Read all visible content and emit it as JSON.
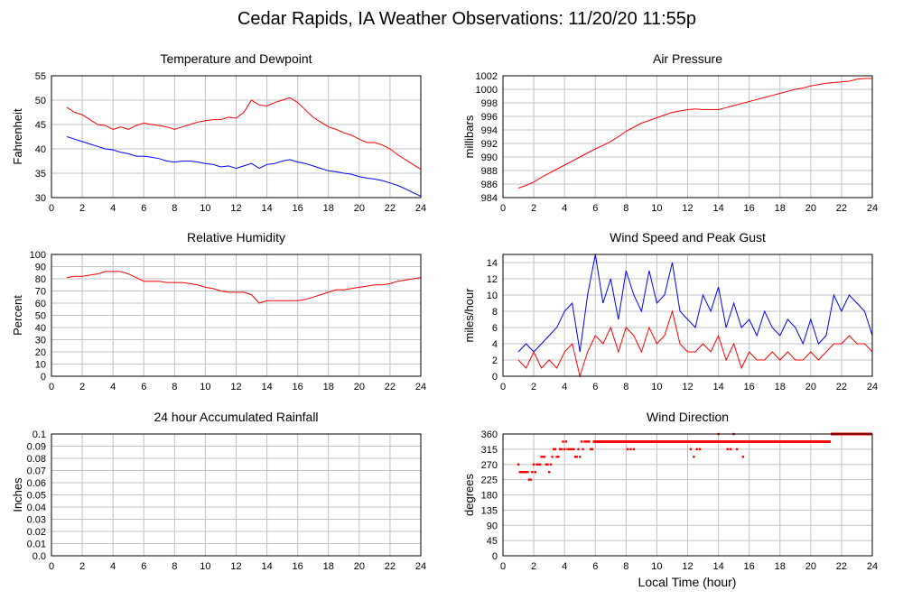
{
  "title": "Cedar Rapids, IA Weather Observations: 11/20/20 11:55p",
  "x_axis_label": "Local Time (hour)",
  "colors": {
    "red": "#ff0000",
    "blue": "#0000ff",
    "grid": "#c0c0c0",
    "frame": "#000000"
  },
  "chart_data": [
    {
      "type": "line",
      "title": "Temperature and Dewpoint",
      "ylabel": "Fahrenheit",
      "xlim": [
        0,
        24
      ],
      "ylim": [
        30,
        55
      ],
      "xticks": [
        0,
        2,
        4,
        6,
        8,
        10,
        12,
        14,
        16,
        18,
        20,
        22,
        24
      ],
      "yticks": [
        30,
        35,
        40,
        45,
        50,
        55
      ],
      "grid": true,
      "series": [
        {
          "color": "#ff0000",
          "x": [
            1,
            1.5,
            2,
            2.5,
            3,
            3.5,
            4,
            4.5,
            5,
            5.5,
            6,
            6.5,
            7,
            7.5,
            8,
            8.5,
            9,
            9.5,
            10,
            10.5,
            11,
            11.5,
            12,
            12.5,
            13,
            13.5,
            14,
            14.5,
            15,
            15.5,
            16,
            16.5,
            17,
            17.5,
            18,
            18.5,
            19,
            19.5,
            20,
            20.5,
            21,
            21.5,
            22,
            22.5,
            23,
            23.5,
            24
          ],
          "y": [
            48.5,
            47.5,
            47.0,
            46.0,
            45.0,
            44.8,
            44.0,
            44.5,
            44.0,
            44.8,
            45.3,
            45.0,
            44.8,
            44.5,
            44.0,
            44.5,
            45.0,
            45.5,
            45.8,
            46.0,
            46.0,
            46.5,
            46.3,
            47.5,
            50.0,
            49.0,
            48.8,
            49.5,
            50.0,
            50.5,
            49.5,
            48.0,
            46.5,
            45.5,
            44.5,
            44.0,
            43.3,
            42.8,
            42.0,
            41.3,
            41.3,
            40.8,
            40.0,
            38.8,
            37.8,
            36.8,
            35.8
          ]
        },
        {
          "color": "#0000ff",
          "x": [
            1,
            1.5,
            2,
            2.5,
            3,
            3.5,
            4,
            4.5,
            5,
            5.5,
            6,
            6.5,
            7,
            7.5,
            8,
            8.5,
            9,
            9.5,
            10,
            10.5,
            11,
            11.5,
            12,
            12.5,
            13,
            13.5,
            14,
            14.5,
            15,
            15.5,
            16,
            16.5,
            17,
            17.5,
            18,
            18.5,
            19,
            19.5,
            20,
            20.5,
            21,
            21.5,
            22,
            22.5,
            23,
            23.5,
            24
          ],
          "y": [
            42.5,
            42.0,
            41.5,
            41.0,
            40.5,
            40.0,
            39.8,
            39.3,
            39.0,
            38.5,
            38.5,
            38.3,
            38.0,
            37.5,
            37.3,
            37.5,
            37.5,
            37.3,
            37.0,
            36.8,
            36.3,
            36.5,
            36.0,
            36.5,
            37.0,
            36.0,
            36.8,
            37.0,
            37.5,
            37.8,
            37.3,
            37.0,
            36.5,
            36.0,
            35.5,
            35.3,
            35.0,
            34.8,
            34.3,
            34.0,
            33.8,
            33.5,
            33.0,
            32.5,
            31.8,
            31.0,
            30.3
          ]
        }
      ]
    },
    {
      "type": "line",
      "title": "Air Pressure",
      "ylabel": "millibars",
      "xlim": [
        0,
        24
      ],
      "ylim": [
        984,
        1002
      ],
      "xticks": [
        0,
        2,
        4,
        6,
        8,
        10,
        12,
        14,
        16,
        18,
        20,
        22,
        24
      ],
      "yticks": [
        984,
        986,
        988,
        990,
        992,
        994,
        996,
        998,
        1000,
        1002
      ],
      "grid": true,
      "series": [
        {
          "color": "#ff0000",
          "x": [
            1,
            1.5,
            2,
            2.5,
            3,
            3.5,
            4,
            4.5,
            5,
            5.5,
            6,
            6.5,
            7,
            7.5,
            8,
            8.5,
            9,
            9.5,
            10,
            10.5,
            11,
            11.5,
            12,
            12.5,
            13,
            13.5,
            14,
            14.5,
            15,
            15.5,
            16,
            16.5,
            17,
            17.5,
            18,
            18.5,
            19,
            19.5,
            20,
            20.5,
            21,
            21.5,
            22,
            22.5,
            23,
            23.5,
            24
          ],
          "y": [
            985.4,
            985.8,
            986.3,
            987.0,
            987.6,
            988.2,
            988.8,
            989.4,
            990.0,
            990.6,
            991.2,
            991.7,
            992.3,
            993.0,
            993.8,
            994.4,
            995.0,
            995.4,
            995.8,
            996.2,
            996.6,
            996.8,
            997.0,
            997.1,
            997.0,
            997.0,
            997.0,
            997.3,
            997.6,
            997.9,
            998.2,
            998.5,
            998.8,
            999.1,
            999.4,
            999.7,
            1000.0,
            1000.2,
            1000.5,
            1000.7,
            1000.9,
            1001.0,
            1001.1,
            1001.2,
            1001.5,
            1001.6,
            1001.6
          ]
        }
      ]
    },
    {
      "type": "line",
      "title": "Relative Humidity",
      "ylabel": "Percent",
      "xlim": [
        0,
        24
      ],
      "ylim": [
        0,
        100
      ],
      "xticks": [
        0,
        2,
        4,
        6,
        8,
        10,
        12,
        14,
        16,
        18,
        20,
        22,
        24
      ],
      "yticks": [
        0,
        10,
        20,
        30,
        40,
        50,
        60,
        70,
        80,
        90,
        100
      ],
      "grid": true,
      "series": [
        {
          "color": "#ff0000",
          "x": [
            1,
            1.5,
            2,
            2.5,
            3,
            3.5,
            4,
            4.5,
            5,
            5.5,
            6,
            6.5,
            7,
            7.5,
            8,
            8.5,
            9,
            9.5,
            10,
            10.5,
            11,
            11.5,
            12,
            12.5,
            13,
            13.5,
            14,
            14.5,
            15,
            15.5,
            16,
            16.5,
            17,
            17.5,
            18,
            18.5,
            19,
            19.5,
            20,
            20.5,
            21,
            21.5,
            22,
            22.5,
            23,
            23.5,
            24
          ],
          "y": [
            81,
            82,
            82,
            83,
            84,
            86,
            86,
            86,
            84,
            81,
            78,
            78,
            78,
            77,
            77,
            77,
            76,
            75,
            73,
            72,
            70,
            69,
            69,
            69,
            67,
            60,
            62,
            62,
            62,
            62,
            62,
            63,
            65,
            67,
            69,
            71,
            71,
            72,
            73,
            74,
            75,
            75,
            76,
            78,
            79,
            80,
            81
          ]
        }
      ]
    },
    {
      "type": "line",
      "title": "Wind Speed and Peak Gust",
      "ylabel": "miles/hour",
      "xlim": [
        0,
        24
      ],
      "ylim": [
        0,
        15
      ],
      "xticks": [
        0,
        2,
        4,
        6,
        8,
        10,
        12,
        14,
        16,
        18,
        20,
        22,
        24
      ],
      "yticks": [
        0,
        2,
        4,
        6,
        8,
        10,
        12,
        14
      ],
      "grid": true,
      "series": [
        {
          "color": "#0000ff",
          "x": [
            1,
            1.5,
            2,
            2.5,
            3,
            3.5,
            4,
            4.5,
            5,
            5.5,
            6,
            6.5,
            7,
            7.5,
            8,
            8.5,
            9,
            9.5,
            10,
            10.5,
            11,
            11.5,
            12,
            12.5,
            13,
            13.5,
            14,
            14.5,
            15,
            15.5,
            16,
            16.5,
            17,
            17.5,
            18,
            18.5,
            19,
            19.5,
            20,
            20.5,
            21,
            21.5,
            22,
            22.5,
            23,
            23.5,
            24
          ],
          "y": [
            3,
            4,
            3,
            4,
            5,
            6,
            8,
            9,
            3,
            10,
            15,
            9,
            12,
            7,
            13,
            10,
            8,
            13,
            9,
            10,
            14,
            8,
            7,
            6,
            10,
            8,
            11,
            6,
            9,
            6,
            7,
            5,
            8,
            6,
            5,
            7,
            6,
            4,
            7,
            4,
            5,
            10,
            8,
            10,
            9,
            8,
            5
          ]
        },
        {
          "color": "#ff0000",
          "x": [
            1,
            1.5,
            2,
            2.5,
            3,
            3.5,
            4,
            4.5,
            5,
            5.5,
            6,
            6.5,
            7,
            7.5,
            8,
            8.5,
            9,
            9.5,
            10,
            10.5,
            11,
            11.5,
            12,
            12.5,
            13,
            13.5,
            14,
            14.5,
            15,
            15.5,
            16,
            16.5,
            17,
            17.5,
            18,
            18.5,
            19,
            19.5,
            20,
            20.5,
            21,
            21.5,
            22,
            22.5,
            23,
            23.5,
            24
          ],
          "y": [
            2,
            1,
            3,
            1,
            2,
            1,
            3,
            4,
            0,
            3,
            5,
            4,
            6,
            3,
            6,
            5,
            3,
            6,
            4,
            5,
            8,
            4,
            3,
            3,
            4,
            3,
            5,
            2,
            4,
            1,
            3,
            2,
            2,
            3,
            2,
            3,
            2,
            2,
            3,
            2,
            3,
            4,
            4,
            5,
            4,
            4,
            3
          ]
        }
      ]
    },
    {
      "type": "line",
      "title": "24 hour Accumulated Rainfall",
      "ylabel": "Inches",
      "xlim": [
        0,
        24
      ],
      "ylim": [
        0.0,
        0.1
      ],
      "xticks": [
        0,
        2,
        4,
        6,
        8,
        10,
        12,
        14,
        16,
        18,
        20,
        22,
        24
      ],
      "yticks": [
        0.0,
        0.01,
        0.02,
        0.03,
        0.04,
        0.05,
        0.06,
        0.07,
        0.08,
        0.09,
        0.1
      ],
      "ytick_labels": [
        "0.0",
        "0.01",
        "0.02",
        "0.03",
        "0.04",
        "0.05",
        "0.06",
        "0.07",
        "0.08",
        "0.09",
        "0.1"
      ],
      "grid": true,
      "series": [
        {
          "color": "#ff0000",
          "x": [
            1,
            24
          ],
          "y": [
            0,
            0
          ]
        }
      ]
    },
    {
      "type": "scatter",
      "title": "Wind Direction",
      "ylabel": "degrees",
      "xlim": [
        0,
        24
      ],
      "ylim": [
        0,
        360
      ],
      "xticks": [
        0,
        2,
        4,
        6,
        8,
        10,
        12,
        14,
        16,
        18,
        20,
        22,
        24
      ],
      "yticks": [
        0,
        45,
        90,
        135,
        180,
        225,
        270,
        315,
        360
      ],
      "grid": true,
      "series": [
        {
          "color": "#ff0000",
          "x": [
            1.0,
            1.1,
            1.2,
            1.3,
            1.4,
            1.5,
            1.6,
            1.7,
            1.8,
            1.9,
            2.0,
            2.1,
            2.2,
            2.3,
            2.4,
            2.5,
            2.6,
            2.7,
            2.8,
            2.9,
            3.0,
            3.1,
            3.2,
            3.3,
            3.4,
            3.5,
            3.6,
            3.7,
            3.8,
            3.9,
            4.0,
            4.1,
            4.2,
            4.3,
            4.4,
            4.5,
            4.6,
            4.7,
            4.8,
            4.9,
            5.0,
            5.1,
            5.2,
            5.3,
            5.4,
            5.5,
            5.6,
            5.7,
            5.8,
            5.9,
            8.1,
            8.3,
            8.5,
            12.2,
            12.4,
            12.6,
            12.8,
            14.0,
            14.6,
            14.8,
            15.0,
            15.2,
            15.6
          ],
          "y": [
            270,
            247.5,
            247.5,
            247.5,
            247.5,
            247.5,
            247.5,
            225,
            225,
            247.5,
            270,
            247.5,
            270,
            270,
            270,
            292.5,
            292.5,
            292.5,
            270,
            270,
            247.5,
            270,
            292.5,
            315,
            315,
            292.5,
            292.5,
            315,
            315,
            337.5,
            315,
            337.5,
            315,
            315,
            315,
            315,
            315,
            292.5,
            292.5,
            315,
            292.5,
            337.5,
            315,
            337.5,
            337.5,
            337.5,
            337.5,
            315,
            315,
            337.5,
            315,
            315,
            315,
            315,
            292.5,
            315,
            315,
            360,
            315,
            315,
            360,
            315,
            292.5
          ]
        }
      ],
      "constant_segments": [
        {
          "y": 337.5,
          "x": [
            5.9,
            21.3
          ]
        },
        {
          "y": 360,
          "x": [
            21.3,
            24
          ]
        }
      ]
    }
  ]
}
